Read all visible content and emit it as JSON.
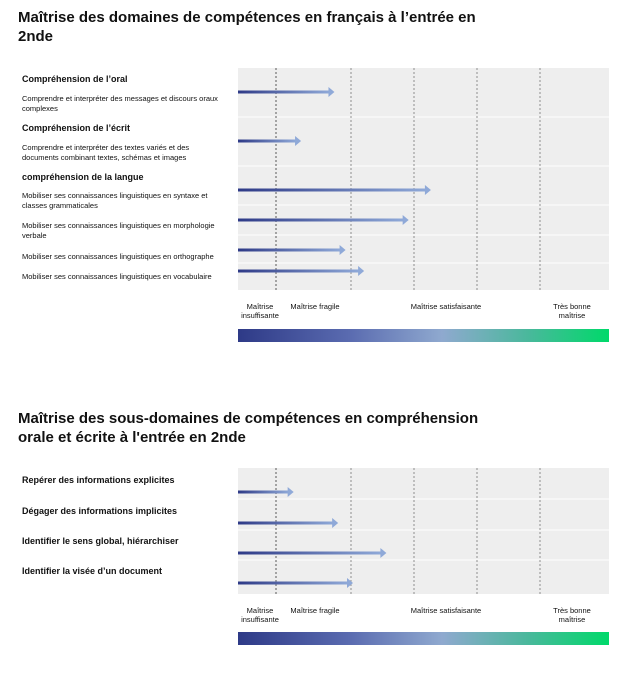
{
  "chart_data": [
    {
      "type": "bar",
      "title": "Maîtrise des domaines de compétences en français à l’entrée en 2nde",
      "levels": [
        "Maîtrise insuffisante",
        "Maîtrise fragile",
        "Maîtrise satisfaisante",
        "Très bonne maîtrise"
      ],
      "xlim": [
        0,
        100
      ],
      "groups": [
        {
          "label": "Compréhension de l’oral",
          "items": [
            {
              "label": "Comprendre et interpréter des messages et discours oraux complexes",
              "value": 26
            }
          ]
        },
        {
          "label": "Compréhension de l’écrit",
          "items": [
            {
              "label": "Comprendre et interpréter des textes variés et des documents combinant textes, schémas et images",
              "value": 17
            }
          ]
        },
        {
          "label": "compréhension de la langue",
          "items": [
            {
              "label": "Mobiliser ses connaissances linguistiques en syntaxe et classes grammaticales",
              "value": 52
            },
            {
              "label": "Mobiliser ses connaissances linguistiques en morphologie verbale",
              "value": 46
            },
            {
              "label": "Mobiliser ses connaissances linguistiques en orthographe",
              "value": 29
            },
            {
              "label": "Mobiliser ses connaissances linguistiques en vocabulaire",
              "value": 34
            }
          ]
        }
      ]
    },
    {
      "type": "bar",
      "title": "Maîtrise des sous-domaines de compétences en compréhension orale et écrite à l'entrée en 2nde",
      "levels": [
        "Maîtrise insuffisante",
        "Maîtrise fragile",
        "Maîtrise satisfaisante",
        "Très bonne maîtrise"
      ],
      "xlim": [
        0,
        100
      ],
      "items": [
        {
          "label": "Repérer des informations explicites",
          "value": 15
        },
        {
          "label": "Dégager des informations implicites",
          "value": 27
        },
        {
          "label": "Identifier le sens global, hiérarchiser",
          "value": 40
        },
        {
          "label": "Identifier la visée d’un document",
          "value": 31
        }
      ]
    }
  ],
  "colors": {
    "arrow_start": "#2e3a87",
    "arrow_end": "#8fa9d8",
    "gradient_end": "#00d96a",
    "plot_bg": "#eeeeee"
  }
}
